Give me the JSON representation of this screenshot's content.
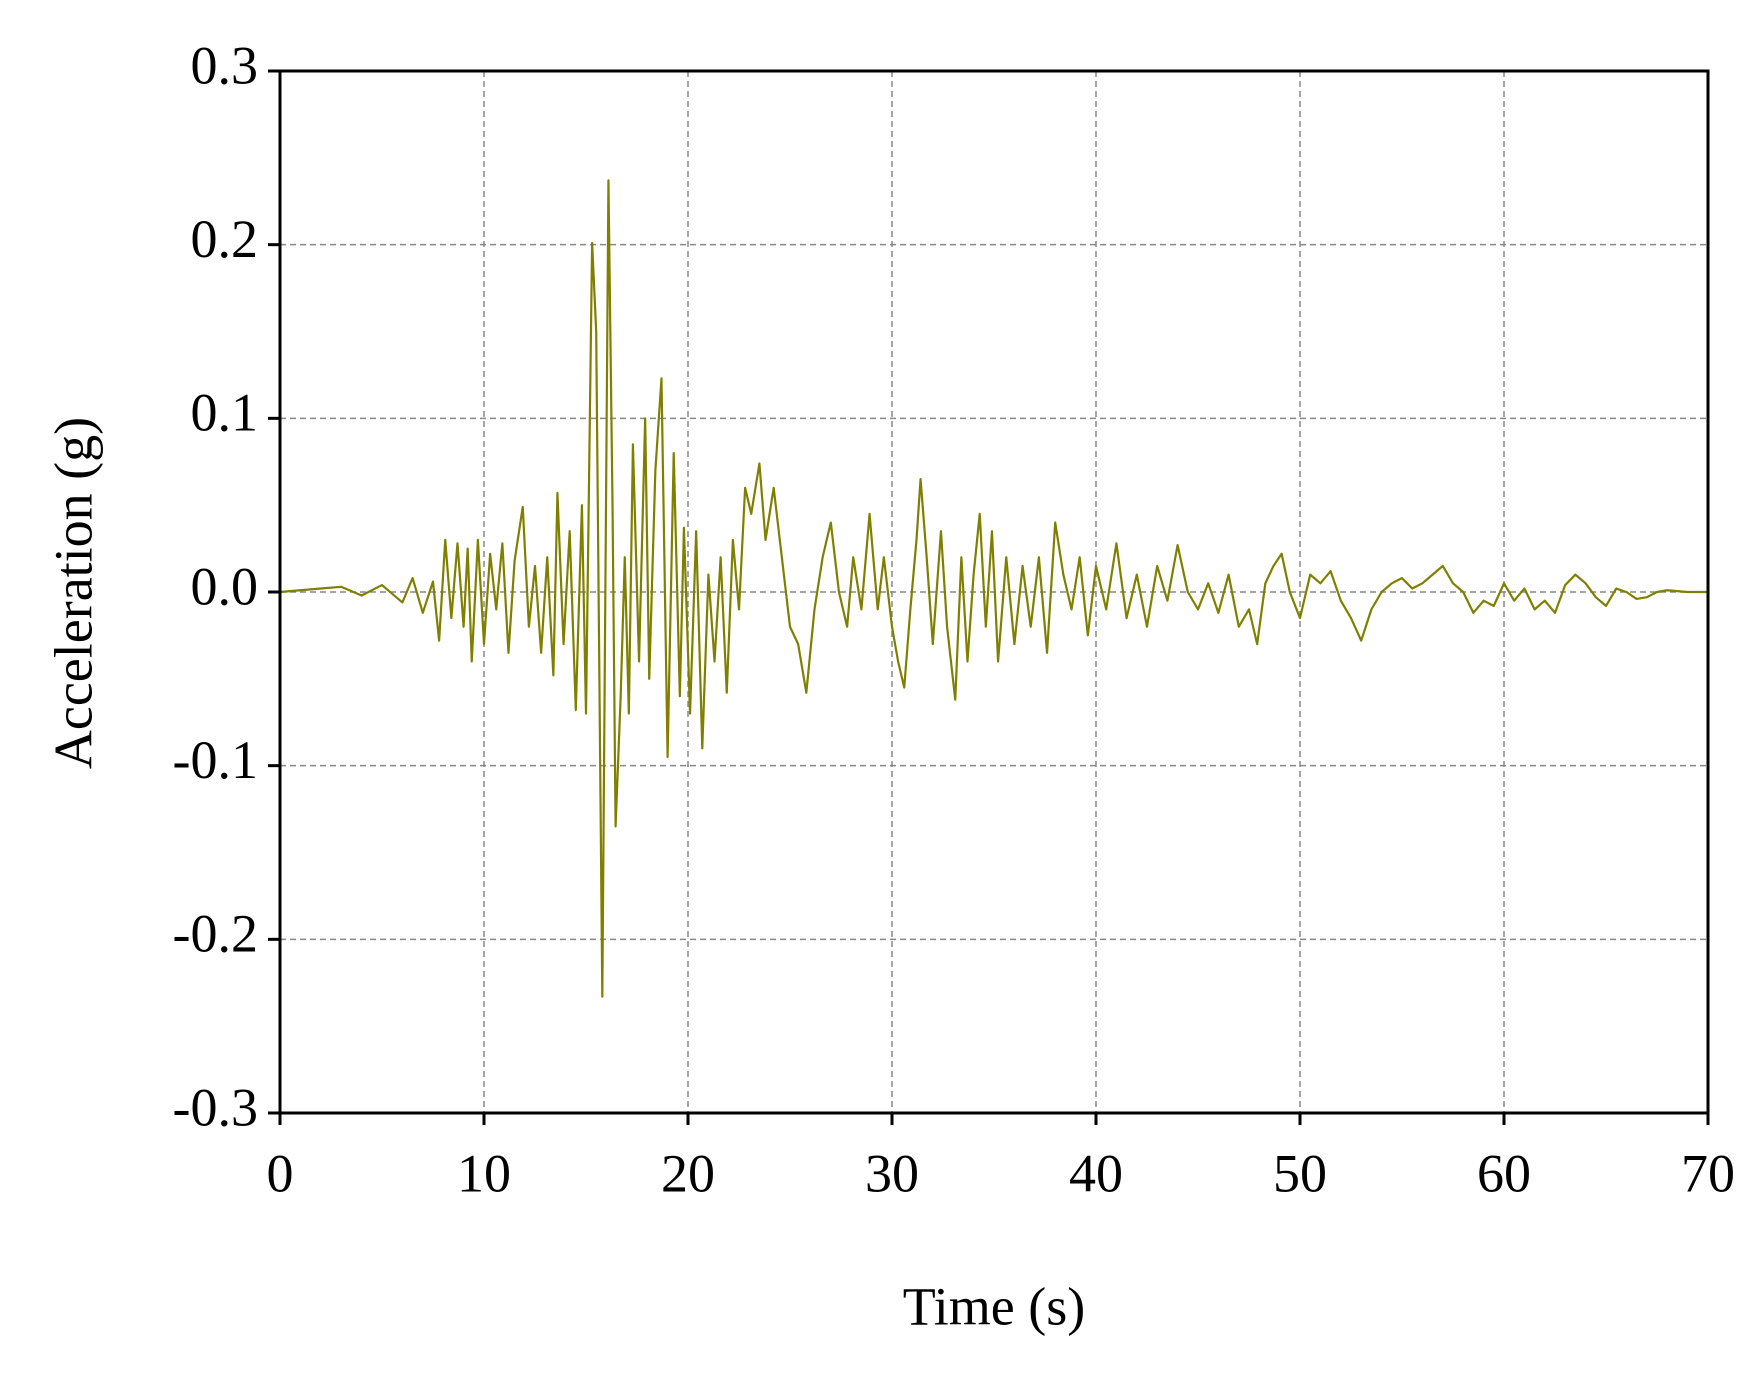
{
  "chart_data": {
    "type": "line",
    "x_label": "Time (s)",
    "y_label": "Acceleration (g)",
    "color": "#808000",
    "grid": true,
    "xlim": [
      0,
      70
    ],
    "xticks": [
      0,
      10,
      20,
      30,
      40,
      50,
      60,
      70
    ],
    "ylim": [
      -0.3,
      0.3
    ],
    "yticks": [
      -0.3,
      -0.2,
      -0.1,
      {
        "value": 0,
        "label": "0.0"
      },
      0.1,
      0.2,
      0.3
    ],
    "x": [
      0,
      1,
      2,
      3,
      4,
      5,
      6,
      6.5,
      7,
      7.5,
      7.8,
      8.1,
      8.4,
      8.7,
      9.0,
      9.2,
      9.4,
      9.7,
      10.0,
      10.3,
      10.6,
      10.9,
      11.2,
      11.5,
      11.9,
      12.2,
      12.5,
      12.8,
      13.1,
      13.4,
      13.6,
      13.9,
      14.2,
      14.5,
      14.8,
      15.0,
      15.3,
      15.5,
      15.8,
      16.1,
      16.3,
      16.45,
      16.7,
      16.9,
      17.1,
      17.3,
      17.6,
      17.9,
      18.1,
      18.4,
      18.7,
      19.0,
      19.3,
      19.6,
      19.8,
      20.1,
      20.4,
      20.7,
      21.0,
      21.3,
      21.6,
      21.9,
      22.2,
      22.5,
      22.8,
      23.1,
      23.5,
      23.8,
      24.2,
      24.6,
      25.0,
      25.4,
      25.8,
      26.2,
      26.6,
      27.0,
      27.4,
      27.8,
      28.1,
      28.5,
      28.9,
      29.3,
      29.6,
      30.0,
      30.3,
      30.6,
      30.9,
      31.2,
      31.4,
      31.7,
      32.0,
      32.4,
      32.7,
      33.1,
      33.4,
      33.7,
      34.0,
      34.3,
      34.6,
      34.9,
      35.2,
      35.6,
      36.0,
      36.4,
      36.8,
      37.2,
      37.6,
      38.0,
      38.4,
      38.8,
      39.2,
      39.6,
      40.0,
      40.5,
      41.0,
      41.5,
      42.0,
      42.5,
      43.0,
      43.5,
      44.0,
      44.5,
      45.0,
      45.5,
      46.0,
      46.5,
      47.0,
      47.5,
      47.9,
      48.3,
      48.7,
      49.1,
      49.5,
      50.0,
      50.5,
      51.0,
      51.5,
      52.0,
      52.5,
      53.0,
      53.5,
      54.0,
      54.5,
      55.0,
      55.5,
      56.0,
      56.5,
      57.0,
      57.5,
      58.0,
      58.5,
      59.0,
      59.5,
      60.0,
      60.5,
      61.0,
      61.5,
      62.0,
      62.5,
      63.0,
      63.5,
      64.0,
      64.5,
      65.0,
      65.5,
      66.0,
      66.5,
      67.0,
      67.5,
      68.0,
      69.0,
      70.0
    ],
    "values": [
      0,
      0.001,
      0.002,
      0.003,
      -0.002,
      0.004,
      -0.006,
      0.008,
      -0.012,
      0.006,
      -0.028,
      0.03,
      -0.015,
      0.028,
      -0.02,
      0.025,
      -0.04,
      0.03,
      -0.03,
      0.022,
      -0.01,
      0.028,
      -0.035,
      0.018,
      0.049,
      -0.02,
      0.015,
      -0.035,
      0.02,
      -0.048,
      0.057,
      -0.03,
      0.035,
      -0.068,
      0.05,
      -0.07,
      0.201,
      0.15,
      -0.233,
      0.237,
      0.05,
      -0.135,
      -0.06,
      0.02,
      -0.07,
      0.085,
      -0.04,
      0.1,
      -0.05,
      0.07,
      0.123,
      -0.095,
      0.08,
      -0.06,
      0.037,
      -0.07,
      0.035,
      -0.09,
      0.01,
      -0.04,
      0.02,
      -0.058,
      0.03,
      -0.01,
      0.06,
      0.045,
      0.074,
      0.03,
      0.06,
      0.02,
      -0.02,
      -0.03,
      -0.058,
      -0.01,
      0.02,
      0.04,
      0.0,
      -0.02,
      0.02,
      -0.01,
      0.045,
      -0.01,
      0.02,
      -0.02,
      -0.04,
      -0.055,
      -0.01,
      0.03,
      0.065,
      0.02,
      -0.03,
      0.035,
      -0.02,
      -0.062,
      0.02,
      -0.04,
      0.01,
      0.045,
      -0.02,
      0.035,
      -0.04,
      0.02,
      -0.03,
      0.015,
      -0.02,
      0.02,
      -0.035,
      0.04,
      0.01,
      -0.01,
      0.02,
      -0.025,
      0.015,
      -0.01,
      0.028,
      -0.015,
      0.01,
      -0.02,
      0.015,
      -0.005,
      0.027,
      0.0,
      -0.01,
      0.005,
      -0.012,
      0.01,
      -0.02,
      -0.01,
      -0.03,
      0.005,
      0.015,
      0.022,
      0.0,
      -0.015,
      0.01,
      0.005,
      0.012,
      -0.005,
      -0.015,
      -0.028,
      -0.01,
      0.0,
      0.005,
      0.008,
      0.002,
      0.005,
      0.01,
      0.015,
      0.005,
      0.0,
      -0.012,
      -0.005,
      -0.008,
      0.005,
      -0.005,
      0.002,
      -0.01,
      -0.005,
      -0.012,
      0.004,
      0.01,
      0.005,
      -0.003,
      -0.008,
      0.002,
      0.0,
      -0.004,
      -0.003,
      0.0,
      0.001,
      0.0,
      0.0
    ]
  }
}
